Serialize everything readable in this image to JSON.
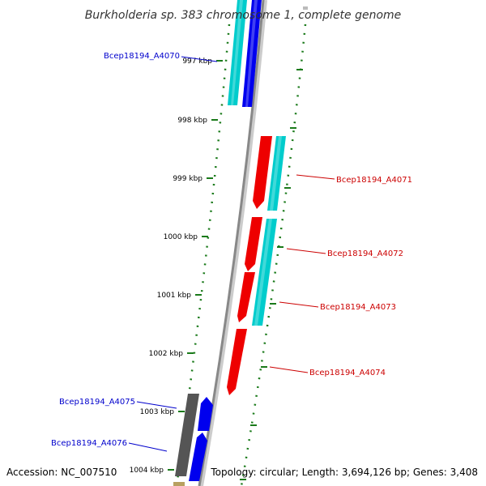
{
  "title": "Burkholderia sp. 383 chromosome 1, complete genome",
  "footer": {
    "accession": "Accession: NC_007510",
    "summary": "Topology: circular; Length: 3,694,126 bp; Genes: 3,408"
  },
  "colors": {
    "forward_label": "#0000cc",
    "reverse_label": "#cc0000",
    "tick": "#1a7a1a",
    "backbone": "#888888",
    "cds_cyan": "#00cccc",
    "cds_blue": "#0000ee",
    "cds_red": "#ee0000",
    "cds_gray": "#555555"
  },
  "scale_ticks": [
    "997 kbp",
    "998 kbp",
    "999 kbp",
    "1000 kbp",
    "1001 kbp",
    "1002 kbp",
    "1003 kbp",
    "1004 kbp"
  ],
  "genes": [
    {
      "label": "Bcep18194_A4070",
      "strand": "forward"
    },
    {
      "label": "Bcep18194_A4071",
      "strand": "reverse"
    },
    {
      "label": "Bcep18194_A4072",
      "strand": "reverse"
    },
    {
      "label": "Bcep18194_A4073",
      "strand": "reverse"
    },
    {
      "label": "Bcep18194_A4074",
      "strand": "reverse"
    },
    {
      "label": "Bcep18194_A4075",
      "strand": "forward"
    },
    {
      "label": "Bcep18194_A4076",
      "strand": "forward"
    }
  ]
}
